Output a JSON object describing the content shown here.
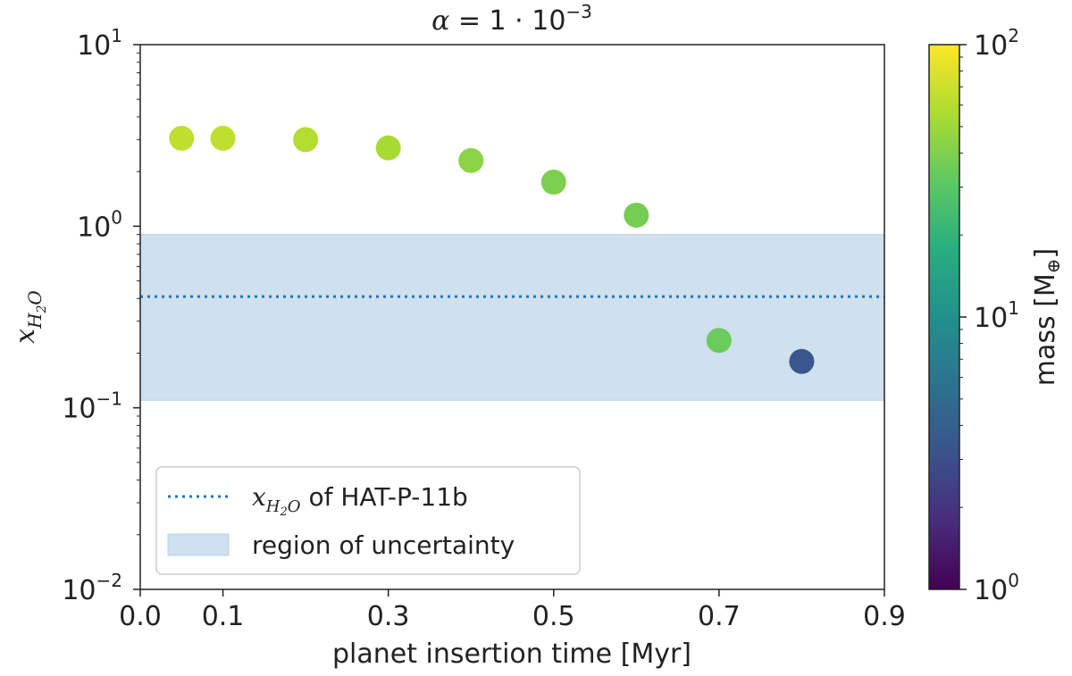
{
  "chart_data": {
    "type": "scatter",
    "title": {
      "base": "α",
      "eq": " = 1 · 10",
      "exp": "−3"
    },
    "xlabel": "planet insertion time [Myr]",
    "ylabel": {
      "base": "x",
      "sub": "H",
      "sub2": "2",
      "sub3": "O"
    },
    "xlim": [
      0.0,
      0.9
    ],
    "ylim": [
      0.01,
      10
    ],
    "yscale": "log",
    "xticks": [
      "0.0",
      "0.1",
      "0.3",
      "0.5",
      "0.7",
      "0.9"
    ],
    "xtick_values": [
      0.0,
      0.1,
      0.3,
      0.5,
      0.7,
      0.9
    ],
    "yticks": [
      {
        "base": "10",
        "exp": "1",
        "value": 10
      },
      {
        "base": "10",
        "exp": "0",
        "value": 1
      },
      {
        "base": "10",
        "exp": "−1",
        "value": 0.1
      },
      {
        "base": "10",
        "exp": "−2",
        "value": 0.01
      }
    ],
    "points": [
      {
        "x": 0.05,
        "y": 3.05,
        "mass": 65
      },
      {
        "x": 0.1,
        "y": 3.05,
        "mass": 65
      },
      {
        "x": 0.2,
        "y": 3.0,
        "mass": 60
      },
      {
        "x": 0.3,
        "y": 2.7,
        "mass": 55
      },
      {
        "x": 0.4,
        "y": 2.3,
        "mass": 45
      },
      {
        "x": 0.5,
        "y": 1.75,
        "mass": 40
      },
      {
        "x": 0.6,
        "y": 1.15,
        "mass": 38
      },
      {
        "x": 0.7,
        "y": 0.235,
        "mass": 35
      },
      {
        "x": 0.8,
        "y": 0.18,
        "mass": 3.5
      }
    ],
    "hat_p_11b_line": 0.41,
    "uncertainty_band": [
      0.11,
      0.9
    ],
    "colorbar": {
      "label": {
        "base": "mass [M",
        "sub": "⊕",
        "end": "]"
      },
      "scale": "log",
      "range": [
        1,
        100
      ],
      "ticks": [
        {
          "base": "10",
          "exp": "2",
          "value": 100
        },
        {
          "base": "10",
          "exp": "1",
          "value": 10
        },
        {
          "base": "10",
          "exp": "0",
          "value": 1
        }
      ],
      "colormap": "viridis"
    },
    "legend": {
      "position": "lower-left",
      "entries": [
        {
          "label_prefix": "x",
          "label_sub": "H",
          "label_sub2": "2",
          "label_sub3": "O",
          "label_rest": " of HAT-P-11b",
          "style": "dotted-line"
        },
        {
          "label": "region of uncertainty",
          "style": "patch"
        }
      ]
    },
    "colors": {
      "band": "#cfe0ee",
      "band_edge": "#b9d2e6",
      "line": "#1f77b4",
      "axes": "#222222"
    }
  }
}
